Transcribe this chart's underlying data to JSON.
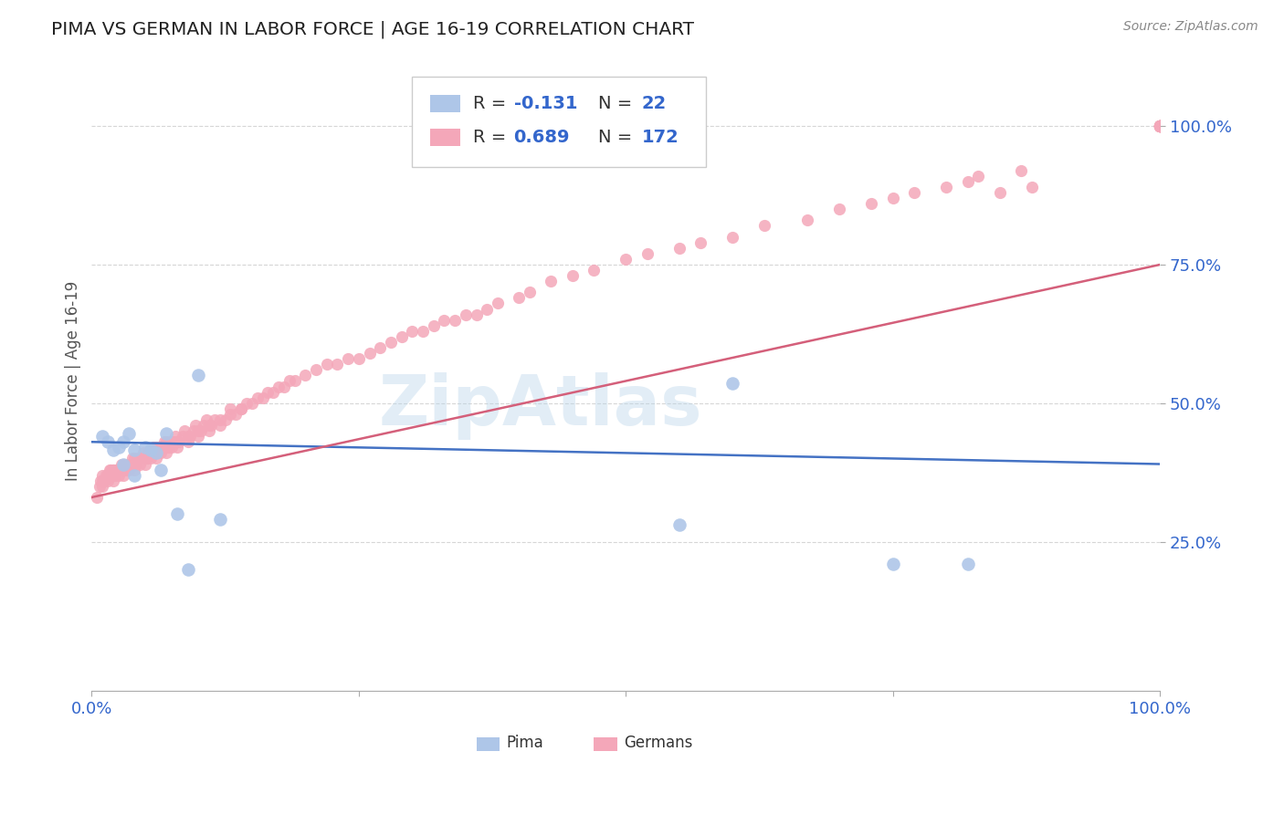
{
  "title": "PIMA VS GERMAN IN LABOR FORCE | AGE 16-19 CORRELATION CHART",
  "source": "Source: ZipAtlas.com",
  "watermark": "ZipAtlas",
  "ylabel": "In Labor Force | Age 16-19",
  "xlim": [
    0.0,
    1.0
  ],
  "ylim": [
    -0.02,
    1.1
  ],
  "pima_color": "#aec6e8",
  "german_color": "#f4a7b9",
  "pima_line_color": "#4472c4",
  "german_line_color": "#d45f7a",
  "background_color": "#ffffff",
  "grid_color": "#cccccc",
  "pima_x": [
    0.01,
    0.015,
    0.02,
    0.025,
    0.03,
    0.03,
    0.035,
    0.04,
    0.04,
    0.05,
    0.055,
    0.06,
    0.065,
    0.07,
    0.08,
    0.09,
    0.1,
    0.12,
    0.55,
    0.6,
    0.75,
    0.82
  ],
  "pima_y": [
    0.44,
    0.43,
    0.415,
    0.42,
    0.43,
    0.39,
    0.445,
    0.37,
    0.415,
    0.42,
    0.415,
    0.41,
    0.38,
    0.445,
    0.3,
    0.2,
    0.55,
    0.29,
    0.28,
    0.535,
    0.21,
    0.21
  ],
  "german_x": [
    0.005,
    0.007,
    0.008,
    0.01,
    0.01,
    0.01,
    0.012,
    0.013,
    0.015,
    0.015,
    0.016,
    0.017,
    0.018,
    0.02,
    0.02,
    0.02,
    0.02,
    0.022,
    0.023,
    0.025,
    0.025,
    0.027,
    0.028,
    0.03,
    0.03,
    0.03,
    0.03,
    0.032,
    0.033,
    0.035,
    0.035,
    0.037,
    0.038,
    0.04,
    0.04,
    0.04,
    0.04,
    0.042,
    0.043,
    0.045,
    0.045,
    0.047,
    0.048,
    0.05,
    0.05,
    0.05,
    0.052,
    0.053,
    0.055,
    0.055,
    0.057,
    0.058,
    0.06,
    0.06,
    0.06,
    0.062,
    0.063,
    0.065,
    0.065,
    0.067,
    0.068,
    0.07,
    0.07,
    0.07,
    0.072,
    0.073,
    0.075,
    0.075,
    0.077,
    0.078,
    0.08,
    0.08,
    0.082,
    0.085,
    0.087,
    0.09,
    0.09,
    0.092,
    0.095,
    0.097,
    0.1,
    0.1,
    0.102,
    0.105,
    0.107,
    0.11,
    0.11,
    0.112,
    0.115,
    0.12,
    0.12,
    0.125,
    0.13,
    0.13,
    0.135,
    0.14,
    0.14,
    0.145,
    0.15,
    0.155,
    0.16,
    0.165,
    0.17,
    0.175,
    0.18,
    0.185,
    0.19,
    0.2,
    0.21,
    0.22,
    0.23,
    0.24,
    0.25,
    0.26,
    0.27,
    0.28,
    0.29,
    0.3,
    0.31,
    0.32,
    0.33,
    0.34,
    0.35,
    0.36,
    0.37,
    0.38,
    0.4,
    0.41,
    0.43,
    0.45,
    0.47,
    0.5,
    0.52,
    0.55,
    0.57,
    0.6,
    0.63,
    0.67,
    0.7,
    0.73,
    0.75,
    0.77,
    0.8,
    0.82,
    0.83,
    0.85,
    0.87,
    0.88,
    1.0,
    1.0,
    1.0,
    1.0,
    1.0,
    1.0,
    1.0,
    1.0,
    1.0,
    1.0,
    1.0,
    1.0,
    1.0,
    1.0,
    1.0,
    1.0,
    1.0,
    1.0,
    1.0,
    1.0,
    1.0,
    1.0,
    1.0,
    1.0,
    1.0,
    1.0,
    1.0,
    1.0,
    1.0
  ],
  "german_y": [
    0.33,
    0.35,
    0.36,
    0.35,
    0.36,
    0.37,
    0.36,
    0.37,
    0.36,
    0.37,
    0.37,
    0.38,
    0.38,
    0.36,
    0.37,
    0.38,
    0.38,
    0.37,
    0.38,
    0.37,
    0.38,
    0.38,
    0.39,
    0.37,
    0.38,
    0.38,
    0.39,
    0.38,
    0.39,
    0.38,
    0.39,
    0.39,
    0.4,
    0.38,
    0.39,
    0.39,
    0.4,
    0.39,
    0.4,
    0.39,
    0.4,
    0.4,
    0.41,
    0.39,
    0.4,
    0.4,
    0.4,
    0.41,
    0.4,
    0.41,
    0.41,
    0.42,
    0.4,
    0.41,
    0.42,
    0.41,
    0.42,
    0.41,
    0.42,
    0.42,
    0.43,
    0.41,
    0.42,
    0.43,
    0.42,
    0.43,
    0.42,
    0.43,
    0.43,
    0.44,
    0.42,
    0.43,
    0.43,
    0.44,
    0.45,
    0.43,
    0.44,
    0.44,
    0.45,
    0.46,
    0.44,
    0.45,
    0.45,
    0.46,
    0.47,
    0.45,
    0.46,
    0.46,
    0.47,
    0.46,
    0.47,
    0.47,
    0.48,
    0.49,
    0.48,
    0.49,
    0.49,
    0.5,
    0.5,
    0.51,
    0.51,
    0.52,
    0.52,
    0.53,
    0.53,
    0.54,
    0.54,
    0.55,
    0.56,
    0.57,
    0.57,
    0.58,
    0.58,
    0.59,
    0.6,
    0.61,
    0.62,
    0.63,
    0.63,
    0.64,
    0.65,
    0.65,
    0.66,
    0.66,
    0.67,
    0.68,
    0.69,
    0.7,
    0.72,
    0.73,
    0.74,
    0.76,
    0.77,
    0.78,
    0.79,
    0.8,
    0.82,
    0.83,
    0.85,
    0.86,
    0.87,
    0.88,
    0.89,
    0.9,
    0.91,
    0.88,
    0.92,
    0.89,
    1.0,
    1.0,
    1.0,
    1.0,
    1.0,
    1.0,
    1.0,
    1.0,
    1.0,
    1.0,
    1.0,
    1.0,
    1.0,
    1.0,
    1.0,
    1.0,
    1.0,
    1.0,
    1.0,
    1.0,
    1.0,
    1.0,
    1.0,
    1.0,
    1.0,
    1.0,
    1.0,
    1.0,
    1.0
  ]
}
